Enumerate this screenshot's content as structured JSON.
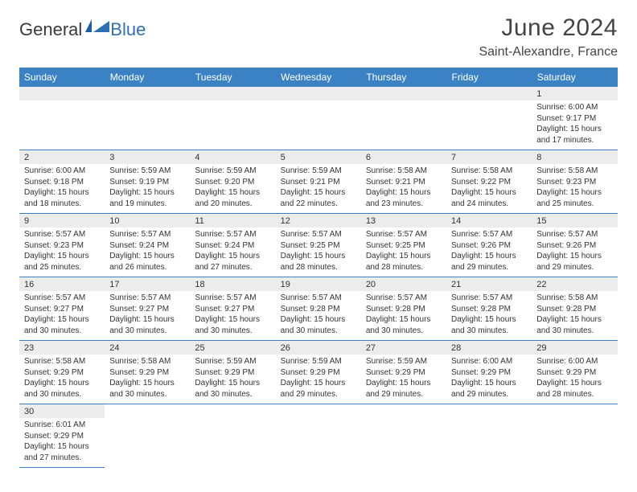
{
  "logo": {
    "text1": "General",
    "text2": "Blue"
  },
  "title": "June 2024",
  "location": "Saint-Alexandre, France",
  "colors": {
    "header_bg": "#3b82c4",
    "header_text": "#ffffff",
    "daynum_bg": "#ececec",
    "border": "#3b82c4",
    "logo_blue": "#2f6fb3",
    "text": "#333333"
  },
  "weekdays": [
    "Sunday",
    "Monday",
    "Tuesday",
    "Wednesday",
    "Thursday",
    "Friday",
    "Saturday"
  ],
  "weeks": [
    {
      "days": [
        null,
        null,
        null,
        null,
        null,
        null,
        {
          "n": "1",
          "sr": "6:00 AM",
          "ss": "9:17 PM",
          "dl": "15 hours and 17 minutes."
        }
      ]
    },
    {
      "days": [
        {
          "n": "2",
          "sr": "6:00 AM",
          "ss": "9:18 PM",
          "dl": "15 hours and 18 minutes."
        },
        {
          "n": "3",
          "sr": "5:59 AM",
          "ss": "9:19 PM",
          "dl": "15 hours and 19 minutes."
        },
        {
          "n": "4",
          "sr": "5:59 AM",
          "ss": "9:20 PM",
          "dl": "15 hours and 20 minutes."
        },
        {
          "n": "5",
          "sr": "5:59 AM",
          "ss": "9:21 PM",
          "dl": "15 hours and 22 minutes."
        },
        {
          "n": "6",
          "sr": "5:58 AM",
          "ss": "9:21 PM",
          "dl": "15 hours and 23 minutes."
        },
        {
          "n": "7",
          "sr": "5:58 AM",
          "ss": "9:22 PM",
          "dl": "15 hours and 24 minutes."
        },
        {
          "n": "8",
          "sr": "5:58 AM",
          "ss": "9:23 PM",
          "dl": "15 hours and 25 minutes."
        }
      ]
    },
    {
      "days": [
        {
          "n": "9",
          "sr": "5:57 AM",
          "ss": "9:23 PM",
          "dl": "15 hours and 25 minutes."
        },
        {
          "n": "10",
          "sr": "5:57 AM",
          "ss": "9:24 PM",
          "dl": "15 hours and 26 minutes."
        },
        {
          "n": "11",
          "sr": "5:57 AM",
          "ss": "9:24 PM",
          "dl": "15 hours and 27 minutes."
        },
        {
          "n": "12",
          "sr": "5:57 AM",
          "ss": "9:25 PM",
          "dl": "15 hours and 28 minutes."
        },
        {
          "n": "13",
          "sr": "5:57 AM",
          "ss": "9:25 PM",
          "dl": "15 hours and 28 minutes."
        },
        {
          "n": "14",
          "sr": "5:57 AM",
          "ss": "9:26 PM",
          "dl": "15 hours and 29 minutes."
        },
        {
          "n": "15",
          "sr": "5:57 AM",
          "ss": "9:26 PM",
          "dl": "15 hours and 29 minutes."
        }
      ]
    },
    {
      "days": [
        {
          "n": "16",
          "sr": "5:57 AM",
          "ss": "9:27 PM",
          "dl": "15 hours and 30 minutes."
        },
        {
          "n": "17",
          "sr": "5:57 AM",
          "ss": "9:27 PM",
          "dl": "15 hours and 30 minutes."
        },
        {
          "n": "18",
          "sr": "5:57 AM",
          "ss": "9:27 PM",
          "dl": "15 hours and 30 minutes."
        },
        {
          "n": "19",
          "sr": "5:57 AM",
          "ss": "9:28 PM",
          "dl": "15 hours and 30 minutes."
        },
        {
          "n": "20",
          "sr": "5:57 AM",
          "ss": "9:28 PM",
          "dl": "15 hours and 30 minutes."
        },
        {
          "n": "21",
          "sr": "5:57 AM",
          "ss": "9:28 PM",
          "dl": "15 hours and 30 minutes."
        },
        {
          "n": "22",
          "sr": "5:58 AM",
          "ss": "9:28 PM",
          "dl": "15 hours and 30 minutes."
        }
      ]
    },
    {
      "days": [
        {
          "n": "23",
          "sr": "5:58 AM",
          "ss": "9:29 PM",
          "dl": "15 hours and 30 minutes."
        },
        {
          "n": "24",
          "sr": "5:58 AM",
          "ss": "9:29 PM",
          "dl": "15 hours and 30 minutes."
        },
        {
          "n": "25",
          "sr": "5:59 AM",
          "ss": "9:29 PM",
          "dl": "15 hours and 30 minutes."
        },
        {
          "n": "26",
          "sr": "5:59 AM",
          "ss": "9:29 PM",
          "dl": "15 hours and 29 minutes."
        },
        {
          "n": "27",
          "sr": "5:59 AM",
          "ss": "9:29 PM",
          "dl": "15 hours and 29 minutes."
        },
        {
          "n": "28",
          "sr": "6:00 AM",
          "ss": "9:29 PM",
          "dl": "15 hours and 29 minutes."
        },
        {
          "n": "29",
          "sr": "6:00 AM",
          "ss": "9:29 PM",
          "dl": "15 hours and 28 minutes."
        }
      ]
    },
    {
      "days": [
        {
          "n": "30",
          "sr": "6:01 AM",
          "ss": "9:29 PM",
          "dl": "15 hours and 27 minutes."
        },
        null,
        null,
        null,
        null,
        null,
        null
      ]
    }
  ],
  "labels": {
    "sunrise": "Sunrise: ",
    "sunset": "Sunset: ",
    "daylight": "Daylight: "
  }
}
